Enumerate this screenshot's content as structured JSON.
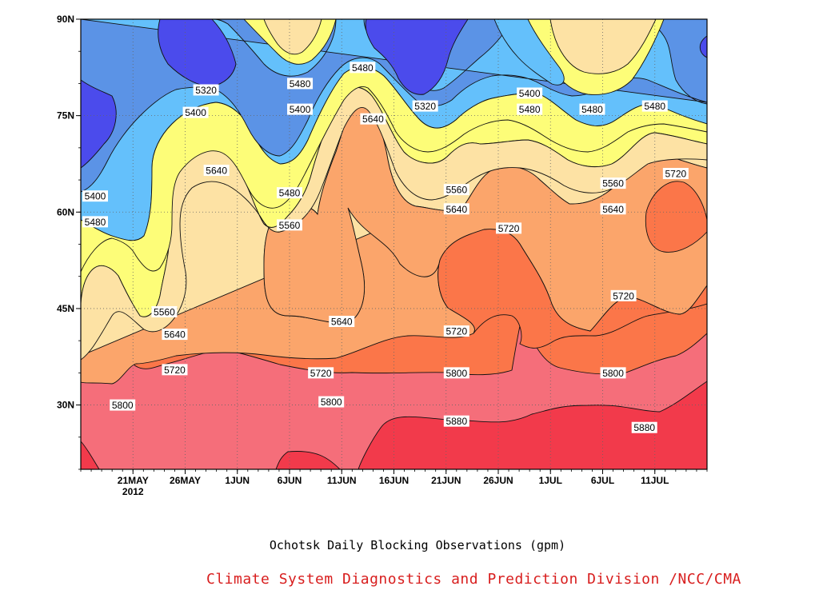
{
  "chart_data": {
    "type": "contour",
    "title": "Ochotsk Daily Blocking Observations (gpm)",
    "credit": "Climate System Diagnostics and Prediction Division /NCC/CMA",
    "x_tick_labels": [
      "21MAY",
      "26MAY",
      "1JUN",
      "6JUN",
      "11JUN",
      "16JUN",
      "21JUN",
      "26JUN",
      "1JUL",
      "6JUL",
      "11JUL"
    ],
    "x_year_label": "2012",
    "x_range": [
      "2012-05-16",
      "2012-07-15"
    ],
    "y_tick_labels": [
      "30N",
      "45N",
      "60N",
      "75N",
      "90N"
    ],
    "y_range": [
      20,
      90
    ],
    "contour_levels": [
      5320,
      5400,
      5480,
      5560,
      5640,
      5720,
      5800,
      5880
    ],
    "contour_colors": {
      "below_5320": "#4b4bec",
      "5320_5400": "#5b93e6",
      "5400_5480": "#64c0fb",
      "5480_5560": "#fdfd78",
      "5560_5640": "#fde2a4",
      "5640_5720": "#fba56b",
      "5720_5800": "#fb7649",
      "5800_5880": "#f56e7a",
      "above_5880": "#f23a4b"
    },
    "contour_labels": [
      {
        "text": "5320",
        "date": "2012-05-28",
        "lat": 79
      },
      {
        "text": "5400",
        "date": "2012-05-27",
        "lat": 75.5
      },
      {
        "text": "5480",
        "date": "2012-06-06",
        "lat": 80
      },
      {
        "text": "5400",
        "date": "2012-06-06",
        "lat": 76
      },
      {
        "text": "5480",
        "date": "2012-06-12",
        "lat": 82.5
      },
      {
        "text": "5320",
        "date": "2012-06-18",
        "lat": 76.5
      },
      {
        "text": "5400",
        "date": "2012-06-28",
        "lat": 78.5
      },
      {
        "text": "5480",
        "date": "2012-06-28",
        "lat": 76
      },
      {
        "text": "5480",
        "date": "2012-07-04",
        "lat": 76
      },
      {
        "text": "5480",
        "date": "2012-07-10",
        "lat": 76.5
      },
      {
        "text": "5640",
        "date": "2012-06-13",
        "lat": 74.5
      },
      {
        "text": "5640",
        "date": "2012-05-29",
        "lat": 66.5
      },
      {
        "text": "5480",
        "date": "2012-06-05",
        "lat": 63
      },
      {
        "text": "5400",
        "date": "2012-05-16",
        "lat": 62.5
      },
      {
        "text": "5480",
        "date": "2012-05-16",
        "lat": 58.5
      },
      {
        "text": "5560",
        "date": "2012-06-05",
        "lat": 58
      },
      {
        "text": "5560",
        "date": "2012-06-21",
        "lat": 63.5
      },
      {
        "text": "5640",
        "date": "2012-06-21",
        "lat": 60.5
      },
      {
        "text": "5560",
        "date": "2012-07-06",
        "lat": 64.5
      },
      {
        "text": "5640",
        "date": "2012-07-06",
        "lat": 60.5
      },
      {
        "text": "5720",
        "date": "2012-07-12",
        "lat": 66
      },
      {
        "text": "5720",
        "date": "2012-06-26",
        "lat": 57.5
      },
      {
        "text": "5720",
        "date": "2012-07-07",
        "lat": 47
      },
      {
        "text": "5560",
        "date": "2012-05-24",
        "lat": 44.5
      },
      {
        "text": "5640",
        "date": "2012-05-25",
        "lat": 41
      },
      {
        "text": "5640",
        "date": "2012-06-10",
        "lat": 43
      },
      {
        "text": "5720",
        "date": "2012-05-25",
        "lat": 35.5
      },
      {
        "text": "5720",
        "date": "2012-06-08",
        "lat": 35
      },
      {
        "text": "5720",
        "date": "2012-06-21",
        "lat": 41.5
      },
      {
        "text": "5800",
        "date": "2012-06-21",
        "lat": 35
      },
      {
        "text": "5800",
        "date": "2012-07-06",
        "lat": 35
      },
      {
        "text": "5800",
        "date": "2012-05-20",
        "lat": 30
      },
      {
        "text": "5800",
        "date": "2012-06-09",
        "lat": 30.5
      },
      {
        "text": "5880",
        "date": "2012-06-21",
        "lat": 27.5
      },
      {
        "text": "5880",
        "date": "2012-07-09",
        "lat": 26.5
      }
    ],
    "grid": true
  }
}
